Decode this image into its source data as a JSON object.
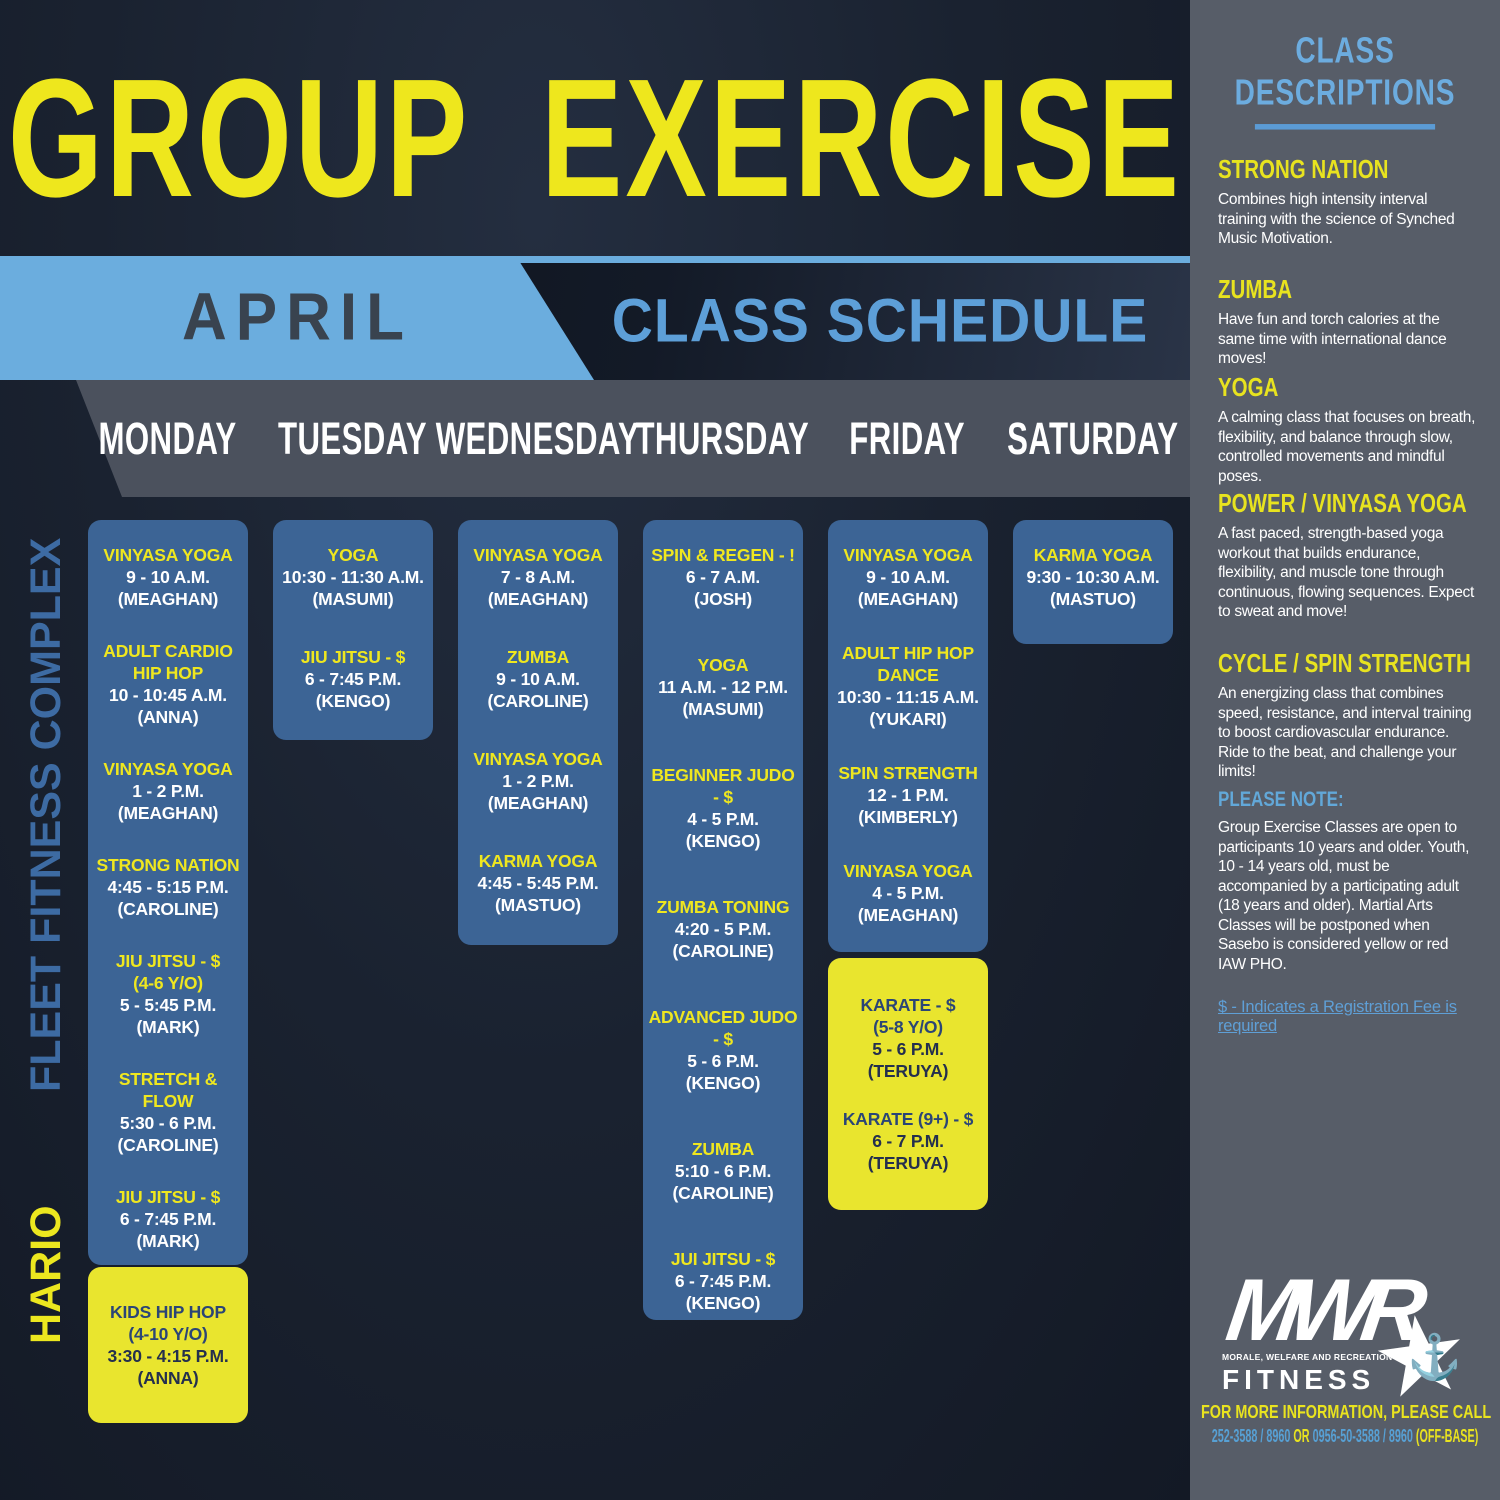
{
  "title": "GROUP EXERCISE",
  "banner": {
    "month": "APRIL",
    "label": "CLASS SCHEDULE"
  },
  "days": [
    "MONDAY",
    "TUESDAY",
    "WEDNESDAY",
    "THURSDAY",
    "FRIDAY",
    "SATURDAY"
  ],
  "locations": {
    "complex": "FLEET FITNESS COMPLEX",
    "hario": "HARIO"
  },
  "schedule": {
    "monday_blue": [
      {
        "title": "VINYASA YOGA",
        "time": "9 - 10 A.M.",
        "instr": "(MEAGHAN)"
      },
      {
        "title": "ADULT CARDIO HIP HOP",
        "time": "10 - 10:45 A.M.",
        "instr": "(ANNA)"
      },
      {
        "title": "VINYASA YOGA",
        "time": "1 - 2 P.M.",
        "instr": "(MEAGHAN)"
      },
      {
        "title": "STRONG NATION",
        "time": "4:45 - 5:15 P.M.",
        "instr": "(CAROLINE)"
      },
      {
        "title": "JIU JITSU - $",
        "sub": "(4-6 Y/O)",
        "time": "5 - 5:45 P.M.",
        "instr": "(MARK)"
      },
      {
        "title": "STRETCH & FLOW",
        "time": "5:30 - 6 P.M.",
        "instr": "(CAROLINE)"
      },
      {
        "title": "JIU JITSU - $",
        "time": "6 - 7:45 P.M.",
        "instr": "(MARK)"
      }
    ],
    "monday_yellow": [
      {
        "title": "KIDS HIP HOP",
        "sub": "(4-10 Y/O)",
        "time": "3:30 - 4:15 P.M.",
        "instr": "(ANNA)"
      }
    ],
    "tuesday_blue": [
      {
        "title": "YOGA",
        "time": "10:30 - 11:30 A.M.",
        "instr": "(MASUMI)"
      },
      {
        "title": "JIU JITSU - $",
        "time": "6 - 7:45 P.M.",
        "instr": "(KENGO)"
      }
    ],
    "wednesday_blue": [
      {
        "title": "VINYASA YOGA",
        "time": "7 - 8 A.M.",
        "instr": "(MEAGHAN)"
      },
      {
        "title": "ZUMBA",
        "time": "9 - 10 A.M.",
        "instr": "(CAROLINE)"
      },
      {
        "title": "VINYASA YOGA",
        "time": "1 - 2 P.M.",
        "instr": "(MEAGHAN)"
      },
      {
        "title": "KARMA YOGA",
        "time": "4:45 - 5:45 P.M.",
        "instr": "(MASTUO)"
      }
    ],
    "thursday_blue": [
      {
        "title": "SPIN & REGEN - !",
        "time": "6 -  7 A.M.",
        "instr": "(JOSH)"
      },
      {
        "title": "YOGA",
        "time": "11 A.M. - 12 P.M.",
        "instr": "(MASUMI)"
      },
      {
        "title": "BEGINNER JUDO - $",
        "time": "4 - 5 P.M.",
        "instr": "(KENGO)"
      },
      {
        "title": "ZUMBA TONING",
        "time": "4:20 - 5 P.M.",
        "instr": "(CAROLINE)"
      },
      {
        "title": "ADVANCED JUDO - $",
        "time": "5 - 6 P.M.",
        "instr": "(KENGO)"
      },
      {
        "title": "ZUMBA",
        "time": "5:10 - 6 P.M.",
        "instr": "(CAROLINE)"
      },
      {
        "title": "JUI JITSU - $",
        "time": "6 - 7:45 P.M.",
        "instr": "(KENGO)"
      }
    ],
    "friday_blue": [
      {
        "title": "VINYASA YOGA",
        "time": "9 - 10 A.M.",
        "instr": "(MEAGHAN)"
      },
      {
        "title": "ADULT HIP HOP DANCE",
        "time": "10:30 - 11:15 A.M.",
        "instr": "(YUKARI)"
      },
      {
        "title": "SPIN STRENGTH",
        "time": "12 - 1 P.M.",
        "instr": "(KIMBERLY)"
      },
      {
        "title": "VINYASA YOGA",
        "time": "4 - 5 P.M.",
        "instr": "(MEAGHAN)"
      }
    ],
    "friday_yellow": [
      {
        "title": "KARATE - $",
        "sub": "(5-8 Y/O)",
        "time": "5 - 6 P.M.",
        "instr": "(TERUYA)"
      },
      {
        "title": "KARATE (9+) - $",
        "time": "6 - 7 P.M.",
        "instr": "(TERUYA)"
      }
    ],
    "saturday_blue": [
      {
        "title": "KARMA YOGA",
        "time": "9:30 - 10:30 A.M.",
        "instr": "(MASTUO)"
      }
    ]
  },
  "sidebar": {
    "heading_line1": "CLASS",
    "heading_line2": "DESCRIPTIONS",
    "classes": [
      {
        "name": "STRONG NATION",
        "desc": "Combines high intensity interval training with the science of Synched Music Motivation."
      },
      {
        "name": "ZUMBA",
        "desc": "Have fun and torch calories at the same time with international dance moves!"
      },
      {
        "name": "YOGA",
        "desc": "A calming class that focuses on breath, flexibility, and balance through slow, controlled movements and mindful poses."
      },
      {
        "name": "POWER / VINYASA YOGA",
        "desc": "A fast paced, strength-based yoga workout that builds endurance, flexibility, and muscle tone through continuous, flowing sequences. Expect to sweat and move!"
      },
      {
        "name": "CYCLE / SPIN STRENGTH",
        "desc": "An energizing class that combines speed, resistance, and interval training to boost cardiovascular endurance. Ride to the beat, and challenge your limits!"
      }
    ],
    "note_label": "PLEASE NOTE:",
    "note_text": "Group Exercise Classes are open to participants 10 years and older. Youth, 10 - 14 years old, must be accompanied by a participating adult (18 years and older). Martial Arts Classes will be postponed when Sasebo is considered yellow or red IAW PHO.",
    "fee_link": "$ - Indicates a Registration Fee is required"
  },
  "logo": {
    "mwr": "MWR",
    "tagline": "MORALE, WELFARE AND RECREATION",
    "fitness": "FITNESS",
    "star_glyph": "★",
    "anchor_glyph": "⚓"
  },
  "footer": {
    "call": "FOR MORE INFORMATION, PLEASE CALL",
    "phone1": "252-3588 / 8960",
    "conj": " OR ",
    "phone2": "0956-50-3588 / 8960",
    "offbase": " (OFF-BASE)"
  },
  "colors": {
    "accent_yellow": "#eee71d",
    "light_blue": "#6badde",
    "box_blue": "#3c6495",
    "box_yellow": "#e9e52e",
    "sidebar_gray": "#575d68",
    "background": "#1a2230"
  }
}
